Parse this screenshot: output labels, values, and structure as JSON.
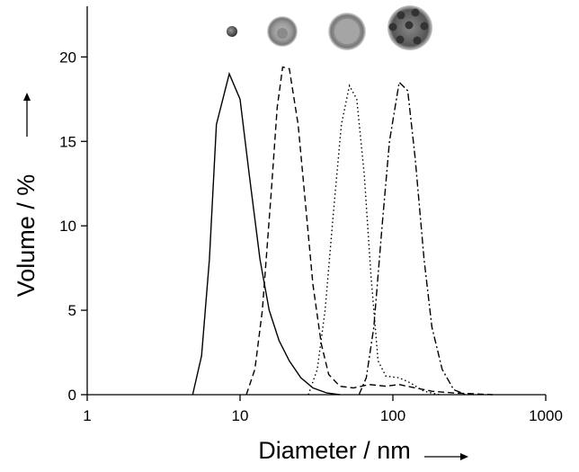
{
  "chart_data": {
    "type": "line",
    "xlabel": "Diameter / nm",
    "ylabel": "Volume / %",
    "xscale": "log",
    "xlim": [
      1,
      1000
    ],
    "ylim": [
      0,
      23
    ],
    "xticks": [
      1,
      10,
      100,
      1000
    ],
    "yticks": [
      0,
      5,
      10,
      15,
      20
    ],
    "series": [
      {
        "color": "#000000",
        "dash": "solid",
        "x": [
          4.9,
          5.6,
          6.3,
          7,
          8.5,
          10,
          11.5,
          13.5,
          15.5,
          18,
          21,
          25,
          30,
          37,
          45
        ],
        "values": [
          0,
          2.3,
          8,
          16,
          19,
          17.5,
          13,
          8,
          5,
          3.2,
          2,
          1,
          0.4,
          0.1,
          0
        ]
      },
      {
        "color": "#000000",
        "dash": "dashed",
        "x": [
          11,
          12.5,
          14,
          16,
          17.5,
          19,
          21,
          24,
          27,
          30,
          34,
          38,
          45,
          55,
          70,
          90,
          110,
          140,
          180,
          250,
          350,
          450
        ],
        "values": [
          0,
          1.5,
          5,
          12,
          17,
          19.4,
          19.3,
          16,
          11,
          6.5,
          3,
          1.2,
          0.5,
          0.4,
          0.6,
          0.5,
          0.6,
          0.4,
          0.2,
          0.1,
          0.05,
          0
        ]
      },
      {
        "color": "#000000",
        "dash": "dotted",
        "x": [
          28,
          32,
          36,
          41,
          46,
          52,
          58,
          65,
          72,
          80,
          90,
          110,
          130,
          160,
          200
        ],
        "values": [
          0,
          1.5,
          5,
          11,
          16,
          18.3,
          17.5,
          13,
          7,
          2,
          1.1,
          1,
          0.7,
          0.2,
          0
        ]
      },
      {
        "color": "#000000",
        "dash": "dashdot",
        "x": [
          60,
          67,
          75,
          85,
          95,
          110,
          125,
          140,
          160,
          180,
          210,
          250,
          300
        ],
        "values": [
          0,
          1,
          4,
          10,
          15,
          18.5,
          18,
          14,
          8,
          4,
          1.5,
          0.3,
          0
        ]
      }
    ]
  }
}
